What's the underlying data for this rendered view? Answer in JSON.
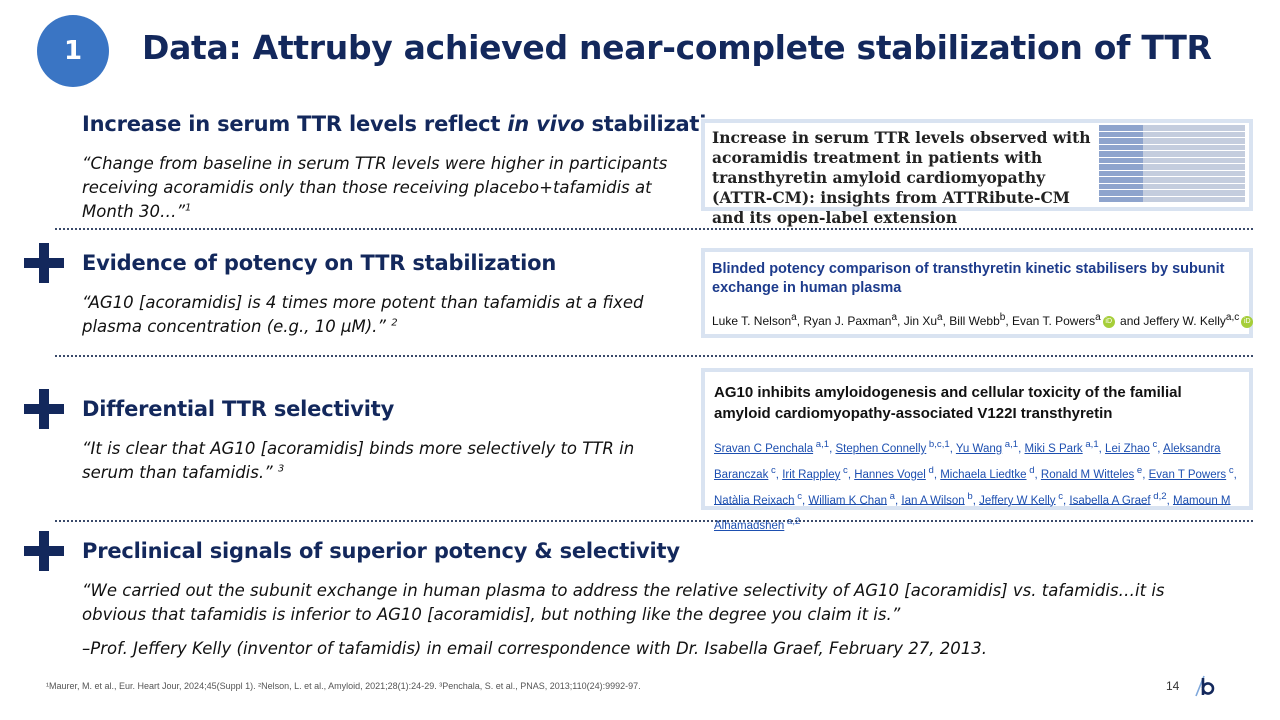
{
  "badge": "1",
  "title": "Data: Attruby achieved near-complete stabilization of TTR",
  "sections": [
    {
      "heading_pre": "Increase in serum TTR levels reflect ",
      "heading_italic": "in vivo",
      "heading_post": " stabilization",
      "quote": "“Change from baseline in serum TTR levels were higher in participants receiving acoramidis only than those receiving placebo+tafamidis at Month 30…”",
      "ref": "1"
    },
    {
      "heading": "Evidence of potency on TTR stabilization",
      "quote": "“AG10 [acoramidis] is 4 times more potent than tafamidis at a fixed plasma concentration (e.g., 10 µM).”",
      "ref": "2"
    },
    {
      "heading": "Differential TTR selectivity",
      "quote": "“It is clear that AG10 [acoramidis] binds more selectively to TTR in serum than tafamidis.”",
      "ref": "3"
    },
    {
      "heading": "Preclinical signals of superior potency & selectivity",
      "quote": "“We carried out the subunit exchange in human plasma to address the relative selectivity of AG10 [acoramidis] vs. tafamidis…it is obvious that tafamidis is inferior to AG10 [acoramidis], but nothing like the degree you claim it is.”",
      "attribution": "–Prof. Jeffery Kelly (inventor of tafamidis) in email correspondence with Dr. Isabella Graef, February 27, 2013."
    }
  ],
  "papers": [
    {
      "title": "Increase in serum TTR levels observed with acoramidis treatment in patients with transthyretin amyloid cardiomyopathy (ATTR-CM): insights from ATTRibute-CM and its open-label extension"
    },
    {
      "title": "Blinded potency comparison of transthyretin kinetic stabilisers by subunit exchange in human plasma",
      "authors_pre": "Luke T. Nelson",
      "authors": [
        {
          "name": "Luke T. Nelson",
          "sup": "a"
        },
        {
          "name": "Ryan J. Paxman",
          "sup": "a"
        },
        {
          "name": "Jin Xu",
          "sup": "a"
        },
        {
          "name": "Bill Webb",
          "sup": "b"
        },
        {
          "name": "Evan T. Powers",
          "sup": "a"
        },
        {
          "name": "Jeffery W. Kelly",
          "sup": "a,c"
        }
      ],
      "authors_and": "and"
    },
    {
      "title": "AG10 inhibits amyloidogenesis and cellular toxicity of the familial amyloid cardiomyopathy-associated V122I transthyretin",
      "authors": [
        {
          "name": "Sravan C Penchala",
          "sup": "a,1"
        },
        {
          "name": "Stephen Connelly",
          "sup": "b,c,1"
        },
        {
          "name": "Yu Wang",
          "sup": "a,1"
        },
        {
          "name": "Miki S Park",
          "sup": "a,1"
        },
        {
          "name": "Lei Zhao",
          "sup": "c"
        },
        {
          "name": "Aleksandra Baranczak",
          "sup": "c"
        },
        {
          "name": "Irit Rappley",
          "sup": "c"
        },
        {
          "name": "Hannes Vogel",
          "sup": "d"
        },
        {
          "name": "Michaela Liedtke",
          "sup": "d"
        },
        {
          "name": "Ronald M Witteles",
          "sup": "e"
        },
        {
          "name": "Evan T Powers",
          "sup": "c"
        },
        {
          "name": "Natàlia Reixach",
          "sup": "c"
        },
        {
          "name": "William K Chan",
          "sup": "a"
        },
        {
          "name": "Ian A Wilson",
          "sup": "b"
        },
        {
          "name": "Jeffery W Kelly",
          "sup": "c"
        },
        {
          "name": "Isabella A Graef",
          "sup": "d,2"
        },
        {
          "name": "Mamoun M Alhamadsheh",
          "sup": "a,2"
        }
      ]
    }
  ],
  "footnote": "¹Maurer, M. et al., Eur. Heart Jour, 2024;45(Suppl 1). ²Nelson, L. et al., Amyloid, 2021;28(1):24-29. ³Penchala, S. et al., PNAS, 2013;110(24):9992-97.",
  "page_number": "14",
  "colors": {
    "navy": "#13285c",
    "badge": "#3a75c4",
    "card_frame": "#d9e3f1",
    "link": "#1d4fb0"
  }
}
